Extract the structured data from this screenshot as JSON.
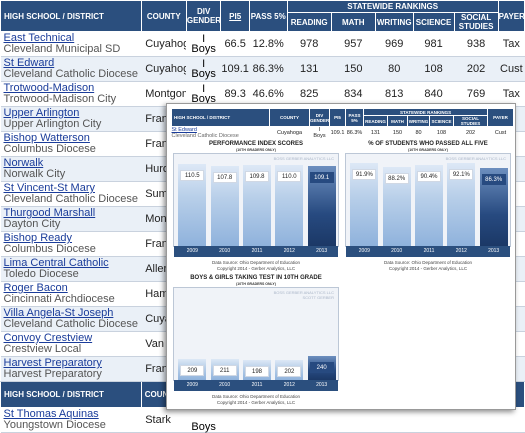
{
  "main_table": {
    "headers": {
      "school": "HIGH SCHOOL / DISTRICT",
      "county": "COUNTY",
      "div": "DIV GENDER",
      "pi": "PI5",
      "pass": "PASS 5%",
      "rankings": "STATEWIDE RANKINGS",
      "reading": "READING",
      "math": "MATH",
      "writing": "WRITING",
      "science": "SCIENCE",
      "social": "SOCIAL STUDIES",
      "payer": "PAYER"
    },
    "rows": [
      {
        "name": "East Technical",
        "district": "Cleveland Municipal SD",
        "county": "Cuyahoga",
        "div": "I",
        "gender": "Boys",
        "pi": "66.5",
        "pass": "12.8%",
        "reading": "978",
        "math": "957",
        "writing": "969",
        "science": "981",
        "social": "938",
        "payer": "Tax"
      },
      {
        "name": "St Edward",
        "district": "Cleveland Catholic Diocese",
        "county": "Cuyahoga",
        "div": "I",
        "gender": "Boys",
        "pi": "109.1",
        "pass": "86.3%",
        "reading": "131",
        "math": "150",
        "writing": "80",
        "science": "108",
        "social": "202",
        "payer": "Cust"
      },
      {
        "name": "Trotwood-Madison",
        "district": "Trotwood-Madison City",
        "county": "Montgomery",
        "div": "I",
        "gender": "Boys",
        "pi": "89.3",
        "pass": "46.6%",
        "reading": "825",
        "math": "834",
        "writing": "813",
        "science": "840",
        "social": "769",
        "payer": "Tax"
      },
      {
        "name": "Upper Arlington",
        "district": "Upper Arlington City",
        "county": "Franklin",
        "div": "",
        "gender": "",
        "pi": "",
        "pass": "",
        "reading": "",
        "math": "",
        "writing": "",
        "science": "",
        "social": "",
        "payer": ""
      },
      {
        "name": "Bishop Watterson",
        "district": "Columbus Diocese",
        "county": "Franklin",
        "div": "",
        "gender": "",
        "pi": "",
        "pass": "",
        "reading": "",
        "math": "",
        "writing": "",
        "science": "",
        "social": "",
        "payer": ""
      },
      {
        "name": "Norwalk",
        "district": "Norwalk City",
        "county": "Huron",
        "div": "",
        "gender": "",
        "pi": "",
        "pass": "",
        "reading": "",
        "math": "",
        "writing": "",
        "science": "",
        "social": "",
        "payer": ""
      },
      {
        "name": "St Vincent-St Mary",
        "district": "Cleveland Catholic Diocese",
        "county": "Summit",
        "div": "",
        "gender": "",
        "pi": "",
        "pass": "",
        "reading": "",
        "math": "",
        "writing": "",
        "science": "",
        "social": "",
        "payer": ""
      },
      {
        "name": "Thurgood Marshall",
        "district": "Dayton City",
        "county": "Montgomer",
        "div": "",
        "gender": "",
        "pi": "",
        "pass": "",
        "reading": "",
        "math": "",
        "writing": "",
        "science": "",
        "social": "",
        "payer": ""
      },
      {
        "name": "Bishop Ready",
        "district": "Columbus Diocese",
        "county": "Franklin",
        "div": "",
        "gender": "",
        "pi": "",
        "pass": "",
        "reading": "",
        "math": "",
        "writing": "",
        "science": "",
        "social": "",
        "payer": ""
      },
      {
        "name": "Lima Central Catholic",
        "district": "Toledo Diocese",
        "county": "Allen",
        "div": "",
        "gender": "",
        "pi": "",
        "pass": "",
        "reading": "",
        "math": "",
        "writing": "",
        "science": "",
        "social": "",
        "payer": ""
      },
      {
        "name": "Roger Bacon",
        "district": "Cincinnati Archdiocese",
        "county": "Hamilton",
        "div": "",
        "gender": "",
        "pi": "",
        "pass": "",
        "reading": "",
        "math": "",
        "writing": "",
        "science": "",
        "social": "",
        "payer": ""
      },
      {
        "name": "Villa Angela-St Joseph",
        "district": "Cleveland Catholic Diocese",
        "county": "Cuyahog",
        "div": "",
        "gender": "",
        "pi": "",
        "pass": "",
        "reading": "",
        "math": "",
        "writing": "",
        "science": "",
        "social": "",
        "payer": ""
      },
      {
        "name": "Convoy Crestview",
        "district": "Crestview Local",
        "county": "Van Wer",
        "div": "",
        "gender": "",
        "pi": "",
        "pass": "",
        "reading": "",
        "math": "",
        "writing": "",
        "science": "",
        "social": "",
        "payer": ""
      },
      {
        "name": "Harvest Preparatory",
        "district": "Harvest Preparatory",
        "county": "Franklin",
        "div": "",
        "gender": "",
        "pi": "",
        "pass": "",
        "reading": "",
        "math": "",
        "writing": "",
        "science": "",
        "social": "",
        "payer": ""
      }
    ],
    "repeat_header": {
      "school": "HIGH SCHOOL / DISTRICT",
      "county": "COUNT"
    },
    "last_row": {
      "name": "St Thomas Aquinas",
      "district": "Youngstown Diocese",
      "county": "Stark",
      "gender": "Boys"
    }
  },
  "popup": {
    "headers": {
      "school": "HIGH SCHOOL / DISTRICT",
      "county": "COUNTY",
      "div": "DIV GENDER",
      "pi": "PI5",
      "pass": "PASS 5%",
      "rankings": "STATEWIDE RANKINGS",
      "reading": "READING",
      "math": "MATH",
      "writing": "WRITING",
      "science": "SCIENCE",
      "social": "SOCIAL STUDIES",
      "payer": "PAYER"
    },
    "row": {
      "name": "St Edward",
      "district": "Cleveland Catholic Diocese",
      "county": "Cuyahoga",
      "div": "I",
      "gender": "Boys",
      "pi": "109.1",
      "pass": "86.3%",
      "reading": "131",
      "math": "150",
      "writing": "80",
      "science": "108",
      "social": "202",
      "payer": "Cust"
    },
    "watermark": "BOSS GERBER ANALYTICS LLC",
    "watermark2": "SCOTT GERBER",
    "source_line1": "Data Source: Ohio Department of Education",
    "source_line2": "Copyright 2014 - Gerber Analytics, LLC"
  },
  "chart_data": [
    {
      "type": "bar",
      "title": "PERFORMANCE INDEX SCORES",
      "subtitle": "(10TH GRADERS ONLY)",
      "categories": [
        "2009",
        "2010",
        "2011",
        "2012",
        "2013"
      ],
      "values": [
        110.5,
        107.8,
        109.8,
        110.0,
        109.1
      ],
      "labels": [
        "110.5",
        "107.8",
        "109.8",
        "110.0",
        "109.1"
      ],
      "ylim": [
        0,
        122
      ]
    },
    {
      "type": "bar",
      "title": "% OF STUDENTS WHO PASSED ALL FIVE",
      "subtitle": "(10TH GRADERS ONLY)",
      "categories": [
        "2009",
        "2010",
        "2011",
        "2012",
        "2013"
      ],
      "values": [
        91.9,
        88.2,
        90.4,
        92.1,
        86.3
      ],
      "labels": [
        "91.9%",
        "88.2%",
        "90.4%",
        "92.1%",
        "86.3%"
      ],
      "ylim": [
        0,
        100
      ]
    },
    {
      "type": "bar",
      "title": "BOYS & GIRLS TAKING TEST IN 10TH GRADE",
      "subtitle": "(10TH GRADERS ONLY)",
      "categories": [
        "2009",
        "2010",
        "2011",
        "2012",
        "2013"
      ],
      "values": [
        209,
        211,
        198,
        202,
        240
      ],
      "labels": [
        "209",
        "211",
        "198",
        "202",
        "240"
      ],
      "ylim": [
        0,
        900
      ]
    }
  ]
}
